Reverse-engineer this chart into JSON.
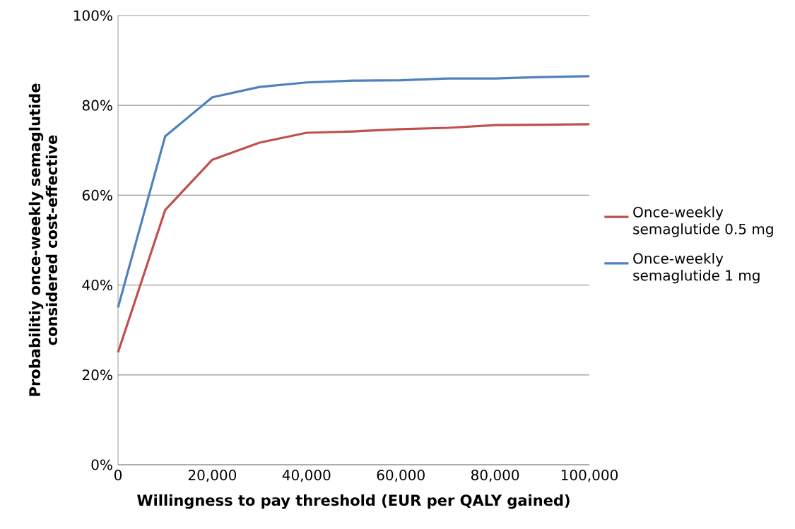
{
  "chart_data": {
    "type": "line",
    "xlabel": "Willingness to pay threshold (EUR per QALY gained)",
    "ylabel": "Probabilitiy once-weekly semaglutide considered cost-effective",
    "x": [
      0,
      10000,
      20000,
      30000,
      40000,
      50000,
      60000,
      70000,
      80000,
      90000,
      100000
    ],
    "series": [
      {
        "name": "Once-weekly semaglutide 0.5 mg",
        "color": "#c0504d",
        "values": [
          25,
          56.7,
          67.9,
          71.7,
          73.9,
          74.2,
          74.7,
          75.0,
          75.6,
          75.7,
          75.8
        ]
      },
      {
        "name": "Once-weekly semaglutide 1 mg",
        "color": "#4f81bd",
        "values": [
          35,
          73.1,
          81.8,
          84.1,
          85.1,
          85.5,
          85.6,
          86.0,
          86.0,
          86.3,
          86.5
        ]
      }
    ],
    "xlim": [
      0,
      100000
    ],
    "xticks": [
      0,
      {
        "value": 20000,
        "label": "20,000"
      },
      {
        "value": 40000,
        "label": "40,000"
      },
      {
        "value": 60000,
        "label": "60,000"
      },
      {
        "value": 80000,
        "label": "80,000"
      },
      {
        "value": 100000,
        "label": "100,000"
      }
    ],
    "ylim": [
      0,
      100
    ],
    "yticks": [
      {
        "value": 0,
        "label": "0%"
      },
      {
        "value": 20,
        "label": "20%"
      },
      {
        "value": 40,
        "label": "40%"
      },
      {
        "value": 60,
        "label": "60%"
      },
      {
        "value": 80,
        "label": "80%"
      },
      {
        "value": 100,
        "label": "100%"
      }
    ],
    "grid": "y",
    "legend": "right",
    "line_style": "solid"
  }
}
